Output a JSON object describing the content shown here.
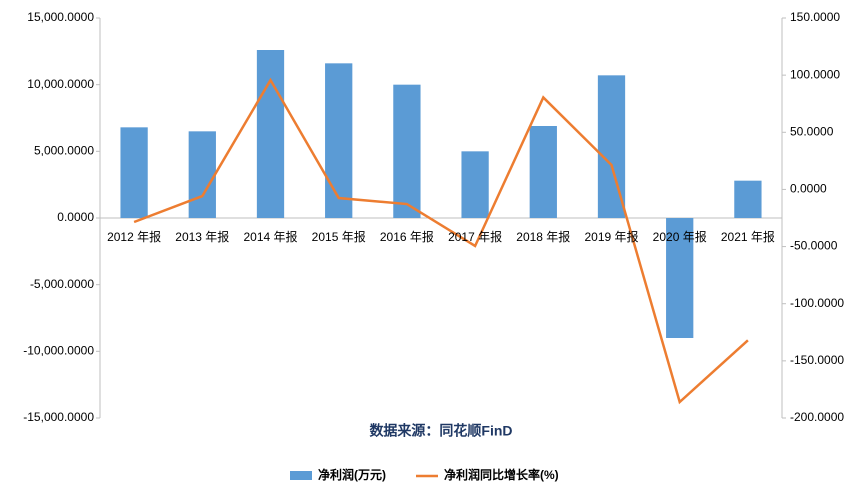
{
  "chart_data": {
    "type": "combo",
    "source": "数据来源：同花顺FinD",
    "categories": [
      "2012 年报",
      "2013 年报",
      "2014 年报",
      "2015 年报",
      "2016 年报",
      "2017 年报",
      "2018 年报",
      "2019 年报",
      "2020 年报",
      "2021 年报"
    ],
    "series": [
      {
        "name": "净利润(万元)",
        "type": "bar",
        "color": "#5b9bd5",
        "values": [
          6800,
          6500,
          12600,
          11600,
          10000,
          5000,
          6900,
          10700,
          -9000,
          2800
        ]
      },
      {
        "name": "净利润同比增长率(%)",
        "type": "line",
        "axis": "y2",
        "color": "#ed7d31",
        "values": [
          -28.5,
          -5.8,
          95.7,
          -7.5,
          -12.8,
          -49.5,
          80.5,
          21.4,
          -186,
          -132
        ]
      }
    ],
    "ylim": [
      -15000,
      15000
    ],
    "yticks": [
      {
        "value": -15000,
        "label": "-15,000.0000"
      },
      {
        "value": -10000,
        "label": "-10,000.0000"
      },
      {
        "value": -5000,
        "label": "-5,000.0000"
      },
      {
        "value": 0,
        "label": "0.0000"
      },
      {
        "value": 5000,
        "label": "5,000.0000"
      },
      {
        "value": 10000,
        "label": "10,000.0000"
      },
      {
        "value": 15000,
        "label": "15,000.0000"
      }
    ],
    "y2lim": [
      -200,
      150
    ],
    "y2ticks": [
      {
        "value": -200,
        "label": "-200.0000"
      },
      {
        "value": -150,
        "label": "-150.0000"
      },
      {
        "value": -100,
        "label": "-100.0000"
      },
      {
        "value": -50,
        "label": "-50.0000"
      },
      {
        "value": 0,
        "label": "0.0000"
      },
      {
        "value": 50,
        "label": "50.0000"
      },
      {
        "value": 100,
        "label": "100.0000"
      },
      {
        "value": 150,
        "label": "150.0000"
      }
    ],
    "legend": "bottom"
  }
}
